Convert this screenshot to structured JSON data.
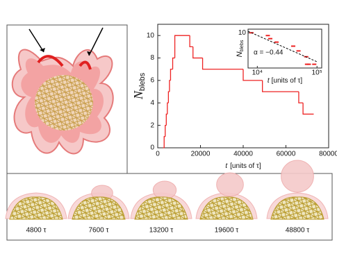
{
  "chart_data": [
    {
      "type": "step",
      "xlabel_var": "t",
      "xlabel": "[units of τ]",
      "ylabel": "N",
      "ylabel_sub": "blebs",
      "x": [
        2500,
        3000,
        3500,
        4000,
        4500,
        5000,
        5500,
        6000,
        7000,
        8000,
        15000,
        16500,
        21000,
        40000,
        49000,
        66000,
        68000,
        73000
      ],
      "series": [
        {
          "color": "#ee2222",
          "values": [
            0,
            1,
            2,
            3,
            4,
            5,
            6,
            7,
            8,
            10,
            9,
            8,
            7,
            6,
            5,
            4,
            3,
            3
          ]
        }
      ],
      "xlim": [
        0,
        80000
      ],
      "ylim": [
        0,
        11
      ],
      "xticks": [
        0,
        20000,
        40000,
        60000,
        80000
      ],
      "yticks": [
        0,
        2,
        4,
        6,
        8,
        10
      ]
    },
    {
      "type": "loglog",
      "xlabel_var": "t",
      "xlabel": "[units of τ]",
      "ylabel": "N",
      "ylabel_sub": "blebs",
      "annotation": "α = −0.44",
      "xlim": [
        7000,
        120000
      ],
      "ylim": [
        2.6,
        11.5
      ],
      "xticks": [
        {
          "value": 10000,
          "label": "10⁴"
        },
        {
          "value": 100000,
          "label": "10⁵"
        }
      ],
      "yticks": [
        10
      ],
      "series": [
        {
          "color": "#ee2222",
          "x": [
            8000,
            15000,
            16500,
            21000,
            40000,
            49000,
            66000,
            68000,
            73000,
            90000
          ],
          "values": [
            10,
            9,
            8,
            7,
            6,
            5,
            4,
            3,
            3,
            3
          ]
        },
        {
          "color": "#000000",
          "x": [
            7000,
            100000
          ],
          "values": [
            10.6,
            3.3
          ]
        }
      ]
    }
  ],
  "snapshots": [
    "4800 τ",
    "7600 τ",
    "13200 τ",
    "19600 τ",
    "48800 τ"
  ]
}
